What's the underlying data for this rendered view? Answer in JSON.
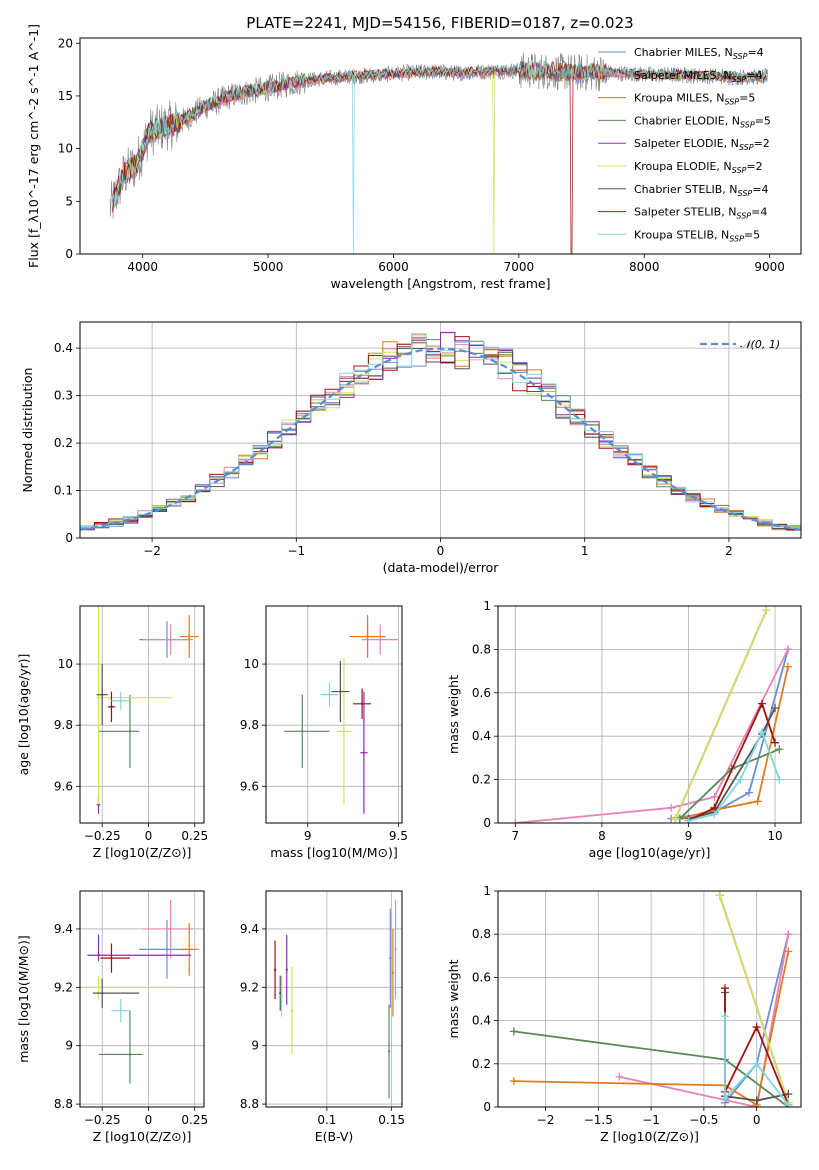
{
  "title": "PLATE=2241, MJD=54156, FIBERID=0187, z=0.023",
  "colors": {
    "Chabrier MILES": "#6a8fd6",
    "Salpeter MILES": "#e882b7",
    "Kroupa MILES": "#e07b1e",
    "Chabrier ELODIE": "#5a8a5a",
    "Salpeter ELODIE": "#8e2bb0",
    "Kroupa ELODIE": "#d4e060",
    "Chabrier STELIB": "#555555",
    "Salpeter STELIB": "#a01212",
    "Kroupa STELIB": "#7fd8e0",
    "data": "#808080"
  },
  "chart_data": [
    {
      "type": "line",
      "panel": "spectrum",
      "xlabel": "wavelength [Angstrom, rest frame]",
      "ylabel": "Flux [f_λ10^-17 erg cm^-2 s^-1 A^-1]",
      "xlim": [
        3500,
        9250
      ],
      "ylim": [
        0,
        20.5
      ],
      "xticks": [
        4000,
        5000,
        6000,
        7000,
        8000,
        9000
      ],
      "yticks": [
        0,
        5,
        10,
        15,
        20
      ],
      "legend_position": "top-right",
      "legend": [
        {
          "name": "Chabrier MILES",
          "nssp": "4"
        },
        {
          "name": "Salpeter MILES",
          "nssp": "4"
        },
        {
          "name": "Kroupa MILES",
          "nssp": "5"
        },
        {
          "name": "Chabrier ELODIE",
          "nssp": "5"
        },
        {
          "name": "Salpeter ELODIE",
          "nssp": "2"
        },
        {
          "name": "Kroupa ELODIE",
          "nssp": "2"
        },
        {
          "name": "Chabrier STELIB",
          "nssp": "4"
        },
        {
          "name": "Salpeter STELIB",
          "nssp": "4"
        },
        {
          "name": "Kroupa STELIB",
          "nssp": "5"
        }
      ],
      "continuum": {
        "x": [
          3750,
          3850,
          3950,
          4050,
          4150,
          4300,
          4500,
          4700,
          4900,
          5100,
          5300,
          5500,
          5700,
          5900,
          6100,
          6300,
          6500,
          6700,
          6900,
          7100,
          7300,
          7500,
          7700,
          7900,
          8100,
          8300,
          8500,
          8700,
          8900,
          9000
        ],
        "y": [
          4.5,
          7.5,
          8.5,
          11.5,
          12.0,
          12.5,
          14.0,
          15.0,
          15.5,
          16.0,
          16.5,
          16.7,
          16.9,
          17.0,
          17.2,
          17.3,
          17.2,
          17.3,
          17.4,
          17.4,
          17.3,
          17.2,
          17.2,
          17.1,
          17.0,
          17.0,
          16.9,
          16.8,
          16.8,
          16.8
        ]
      },
      "model_cutoffs": {
        "Kroupa ELODIE": 6800,
        "Salpeter STELIB": 7420,
        "Kroupa STELIB": 5680
      }
    },
    {
      "type": "line",
      "panel": "residual-histogram",
      "xlabel": "(data-model)/error",
      "ylabel": "Normed distribution",
      "xlim": [
        -2.5,
        2.5
      ],
      "ylim": [
        0,
        0.455
      ],
      "xticks": [
        -2,
        -1,
        0,
        1,
        2
      ],
      "yticks": [
        0.0,
        0.1,
        0.2,
        0.3,
        0.4
      ],
      "legend_position": "top-right",
      "reference_curve": "𝒩(0, 1)",
      "bin_width": 0.1
    },
    {
      "type": "scatter",
      "panel": "age-vs-Z",
      "xlabel": "Z [log10(Z/Z⊙)]",
      "ylabel": "age  [log10(age/yr)]",
      "xlim": [
        -0.37,
        0.3
      ],
      "ylim": [
        9.48,
        10.19
      ],
      "xticks": [
        -0.25,
        0.0,
        0.25
      ],
      "yticks": [
        9.6,
        9.8,
        10.0
      ],
      "points": [
        {
          "series": "Chabrier MILES",
          "x": 0.1,
          "xerr": [
            0.15,
            0.12
          ],
          "y": 10.08,
          "yerr": [
            0.06,
            0.06
          ]
        },
        {
          "series": "Salpeter MILES",
          "x": 0.12,
          "xerr": [
            0.15,
            0.12
          ],
          "y": 10.08,
          "yerr": [
            0.05,
            0.05
          ]
        },
        {
          "series": "Kroupa MILES",
          "x": 0.22,
          "xerr": [
            0.05,
            0.05
          ],
          "y": 10.09,
          "yerr": [
            0.07,
            0.07
          ]
        },
        {
          "series": "Chabrier ELODIE",
          "x": -0.1,
          "xerr": [
            0.17,
            0.05
          ],
          "y": 9.78,
          "yerr": [
            0.12,
            0.12
          ]
        },
        {
          "series": "Salpeter ELODIE",
          "x": -0.27,
          "xerr": [
            0.01,
            0.01
          ],
          "y": 9.54,
          "yerr": [
            0.03,
            0.03
          ]
        },
        {
          "series": "Kroupa ELODIE",
          "x": -0.27,
          "xerr": [
            0.01,
            0.4
          ],
          "y": 9.89,
          "yerr": [
            0.35,
            0.35
          ]
        },
        {
          "series": "Chabrier STELIB",
          "x": -0.25,
          "xerr": [
            0.03,
            0.03
          ],
          "y": 9.9,
          "yerr": [
            0.1,
            0.1
          ]
        },
        {
          "series": "Salpeter STELIB",
          "x": -0.2,
          "xerr": [
            0.02,
            0.02
          ],
          "y": 9.86,
          "yerr": [
            0.05,
            0.05
          ]
        },
        {
          "series": "Kroupa STELIB",
          "x": -0.15,
          "xerr": [
            0.05,
            0.05
          ],
          "y": 9.88,
          "yerr": [
            0.03,
            0.03
          ]
        }
      ]
    },
    {
      "type": "scatter",
      "panel": "age-vs-mass",
      "xlabel": "mass [log10(M/M⊙)]",
      "ylabel": "",
      "xlim": [
        8.77,
        9.52
      ],
      "ylim": [
        9.48,
        10.19
      ],
      "xticks": [
        9.0,
        9.5
      ],
      "yticks": [
        9.6,
        9.8,
        10.0
      ],
      "points": [
        {
          "series": "Chabrier MILES",
          "x": 9.33,
          "xerr": [
            0.1,
            0.1
          ],
          "y": 10.09,
          "yerr": [
            0.06,
            0.06
          ]
        },
        {
          "series": "Salpeter MILES",
          "x": 9.4,
          "xerr": [
            0.1,
            0.1
          ],
          "y": 10.08,
          "yerr": [
            0.05,
            0.05
          ]
        },
        {
          "series": "Kroupa MILES",
          "x": 9.33,
          "xerr": [
            0.09,
            0.09
          ],
          "y": 10.09,
          "yerr": [
            0.07,
            0.07
          ]
        },
        {
          "series": "Chabrier ELODIE",
          "x": 8.97,
          "xerr": [
            0.1,
            0.15
          ],
          "y": 9.78,
          "yerr": [
            0.12,
            0.12
          ]
        },
        {
          "series": "Salpeter ELODIE",
          "x": 9.31,
          "xerr": [
            0.02,
            0.02
          ],
          "y": 9.71,
          "yerr": [
            0.2,
            0.2
          ]
        },
        {
          "series": "Kroupa ELODIE",
          "x": 9.2,
          "xerr": [
            0.04,
            0.04
          ],
          "y": 9.78,
          "yerr": [
            0.24,
            0.24
          ]
        },
        {
          "series": "Chabrier STELIB",
          "x": 9.18,
          "xerr": [
            0.05,
            0.05
          ],
          "y": 9.91,
          "yerr": [
            0.1,
            0.1
          ]
        },
        {
          "series": "Salpeter STELIB",
          "x": 9.3,
          "xerr": [
            0.05,
            0.05
          ],
          "y": 9.87,
          "yerr": [
            0.05,
            0.05
          ]
        },
        {
          "series": "Kroupa STELIB",
          "x": 9.12,
          "xerr": [
            0.05,
            0.05
          ],
          "y": 9.9,
          "yerr": [
            0.04,
            0.04
          ]
        }
      ]
    },
    {
      "type": "line",
      "panel": "mass-weight-vs-age",
      "xlabel": "age  [log10(age/yr)]",
      "ylabel": "mass weight",
      "xlim": [
        6.8,
        10.3
      ],
      "ylim": [
        0,
        1.0
      ],
      "xticks": [
        7,
        8,
        9,
        10
      ],
      "yticks": [
        0.0,
        0.2,
        0.4,
        0.6,
        0.8,
        1.0
      ],
      "series": [
        {
          "name": "Chabrier MILES",
          "x": [
            8.8,
            9.3,
            9.7,
            10.15
          ],
          "y": [
            0.02,
            0.05,
            0.14,
            0.8
          ]
        },
        {
          "name": "Salpeter MILES",
          "x": [
            7.0,
            8.8,
            9.3,
            10.15
          ],
          "y": [
            0.0,
            0.07,
            0.12,
            0.8
          ]
        },
        {
          "name": "Kroupa MILES",
          "x": [
            8.9,
            9.3,
            9.8,
            10.15
          ],
          "y": [
            0.02,
            0.06,
            0.1,
            0.72
          ]
        },
        {
          "name": "Chabrier ELODIE",
          "x": [
            8.9,
            9.5,
            10.05
          ],
          "y": [
            0.02,
            0.25,
            0.34
          ]
        },
        {
          "name": "Salpeter ELODIE",
          "x": [
            8.85,
            9.9
          ],
          "y": [
            0.02,
            0.98
          ]
        },
        {
          "name": "Kroupa ELODIE",
          "x": [
            8.85,
            9.9
          ],
          "y": [
            0.02,
            0.98
          ]
        },
        {
          "name": "Chabrier STELIB",
          "x": [
            9.0,
            9.3,
            9.85,
            10.0
          ],
          "y": [
            0.02,
            0.05,
            0.41,
            0.53
          ]
        },
        {
          "name": "Salpeter STELIB",
          "x": [
            9.0,
            9.3,
            9.85,
            10.0
          ],
          "y": [
            0.01,
            0.07,
            0.55,
            0.37
          ]
        },
        {
          "name": "Kroupa STELIB",
          "x": [
            9.0,
            9.3,
            9.6,
            9.85,
            10.05
          ],
          "y": [
            0.01,
            0.04,
            0.2,
            0.42,
            0.2
          ]
        }
      ]
    },
    {
      "type": "scatter",
      "panel": "mass-vs-Z",
      "xlabel": "Z [log10(Z/Z⊙)]",
      "ylabel": "mass [log10(M/M⊙)]",
      "xlim": [
        -0.37,
        0.3
      ],
      "ylim": [
        8.79,
        9.53
      ],
      "xticks": [
        -0.25,
        0.0,
        0.25
      ],
      "yticks": [
        8.8,
        9.0,
        9.2,
        9.4
      ],
      "points": [
        {
          "series": "Chabrier MILES",
          "x": 0.1,
          "xerr": [
            0.15,
            0.12
          ],
          "y": 9.33,
          "yerr": [
            0.1,
            0.1
          ]
        },
        {
          "series": "Salpeter MILES",
          "x": 0.12,
          "xerr": [
            0.15,
            0.12
          ],
          "y": 9.4,
          "yerr": [
            0.1,
            0.1
          ]
        },
        {
          "series": "Kroupa MILES",
          "x": 0.22,
          "xerr": [
            0.05,
            0.05
          ],
          "y": 9.33,
          "yerr": [
            0.09,
            0.09
          ]
        },
        {
          "series": "Chabrier ELODIE",
          "x": -0.1,
          "xerr": [
            0.17,
            0.07
          ],
          "y": 8.97,
          "yerr": [
            0.1,
            0.15
          ]
        },
        {
          "series": "Salpeter ELODIE",
          "x": -0.27,
          "xerr": [
            0.06,
            0.5
          ],
          "y": 9.31,
          "yerr": [
            0.02,
            0.07
          ]
        },
        {
          "series": "Kroupa ELODIE",
          "x": -0.27,
          "xerr": [
            0.1,
            0.4
          ],
          "y": 9.2,
          "yerr": [
            0.04,
            0.04
          ]
        },
        {
          "series": "Chabrier STELIB",
          "x": -0.25,
          "xerr": [
            0.05,
            0.2
          ],
          "y": 9.18,
          "yerr": [
            0.05,
            0.05
          ]
        },
        {
          "series": "Salpeter STELIB",
          "x": -0.2,
          "xerr": [
            0.06,
            0.1
          ],
          "y": 9.3,
          "yerr": [
            0.05,
            0.05
          ]
        },
        {
          "series": "Kroupa STELIB",
          "x": -0.15,
          "xerr": [
            0.05,
            0.05
          ],
          "y": 9.12,
          "yerr": [
            0.04,
            0.04
          ]
        }
      ]
    },
    {
      "type": "scatter",
      "panel": "mass-vs-ebv",
      "xlabel": "E(B-V)",
      "ylabel": "",
      "xlim": [
        0.053,
        0.158
      ],
      "ylim": [
        8.79,
        9.53
      ],
      "xticks": [
        0.1,
        0.15
      ],
      "yticks": [
        8.8,
        9.0,
        9.2,
        9.4
      ],
      "points": [
        {
          "series": "Chabrier MILES",
          "x": 0.149,
          "y": 9.3,
          "yerr": [
            0.17,
            0.17
          ]
        },
        {
          "series": "Salpeter MILES",
          "x": 0.153,
          "y": 9.33,
          "yerr": [
            0.17,
            0.17
          ]
        },
        {
          "series": "Kroupa MILES",
          "x": 0.151,
          "y": 9.25,
          "yerr": [
            0.15,
            0.15
          ]
        },
        {
          "series": "Chabrier ELODIE",
          "x": 0.148,
          "y": 8.98,
          "yerr": [
            0.16,
            0.16
          ]
        },
        {
          "series": "Salpeter ELODIE",
          "x": 0.069,
          "y": 9.26,
          "yerr": [
            0.12,
            0.12
          ]
        },
        {
          "series": "Kroupa ELODIE",
          "x": 0.073,
          "y": 9.12,
          "yerr": [
            0.15,
            0.15
          ]
        },
        {
          "series": "Chabrier STELIB",
          "x": 0.064,
          "y": 9.18,
          "yerr": [
            0.06,
            0.06
          ]
        },
        {
          "series": "Salpeter STELIB",
          "x": 0.06,
          "y": 9.26,
          "yerr": [
            0.1,
            0.1
          ]
        },
        {
          "series": "Kroupa STELIB",
          "x": 0.065,
          "y": 9.17,
          "yerr": [
            0.07,
            0.07
          ]
        }
      ]
    },
    {
      "type": "line",
      "panel": "mass-weight-vs-Z",
      "xlabel": "Z [log10(Z/Z⊙)]",
      "ylabel": "mass weight",
      "xlim": [
        -2.45,
        0.42
      ],
      "ylim": [
        0,
        1.0
      ],
      "xticks": [
        -2.0,
        -1.5,
        -1.0,
        -0.5,
        0.0
      ],
      "yticks": [
        0.0,
        0.2,
        0.4,
        0.6,
        0.8,
        1.0
      ],
      "series": [
        {
          "name": "Chabrier MILES",
          "x": [
            -0.3,
            0.0,
            0.3
          ],
          "y": [
            0.02,
            0.2,
            0.8
          ]
        },
        {
          "name": "Salpeter MILES",
          "x": [
            -1.3,
            0.0,
            0.3
          ],
          "y": [
            0.14,
            0.0,
            0.8
          ]
        },
        {
          "name": "Kroupa MILES",
          "x": [
            -2.3,
            -0.3,
            0.0,
            0.3
          ],
          "y": [
            0.12,
            0.1,
            0.01,
            0.72
          ]
        },
        {
          "name": "Chabrier ELODIE",
          "x": [
            -2.3,
            -0.3,
            0.3
          ],
          "y": [
            0.35,
            0.22,
            0.0
          ]
        },
        {
          "name": "Salpeter ELODIE",
          "x": [
            -0.35,
            0.3
          ],
          "y": [
            0.98,
            0.02
          ]
        },
        {
          "name": "Kroupa ELODIE",
          "x": [
            -0.35,
            0.3
          ],
          "y": [
            0.98,
            0.02
          ]
        },
        {
          "name": "Chabrier STELIB",
          "x": [
            -0.3,
            -0.3,
            0.0,
            0.3
          ],
          "y": [
            0.53,
            0.05,
            0.03,
            0.06
          ]
        },
        {
          "name": "Salpeter STELIB",
          "x": [
            -0.3,
            -0.3,
            0.0,
            0.3
          ],
          "y": [
            0.55,
            0.07,
            0.37,
            0.01
          ]
        },
        {
          "name": "Kroupa STELIB",
          "x": [
            -0.3,
            -0.3,
            0.0,
            0.3
          ],
          "y": [
            0.42,
            0.04,
            0.2,
            0.01
          ]
        }
      ]
    }
  ]
}
